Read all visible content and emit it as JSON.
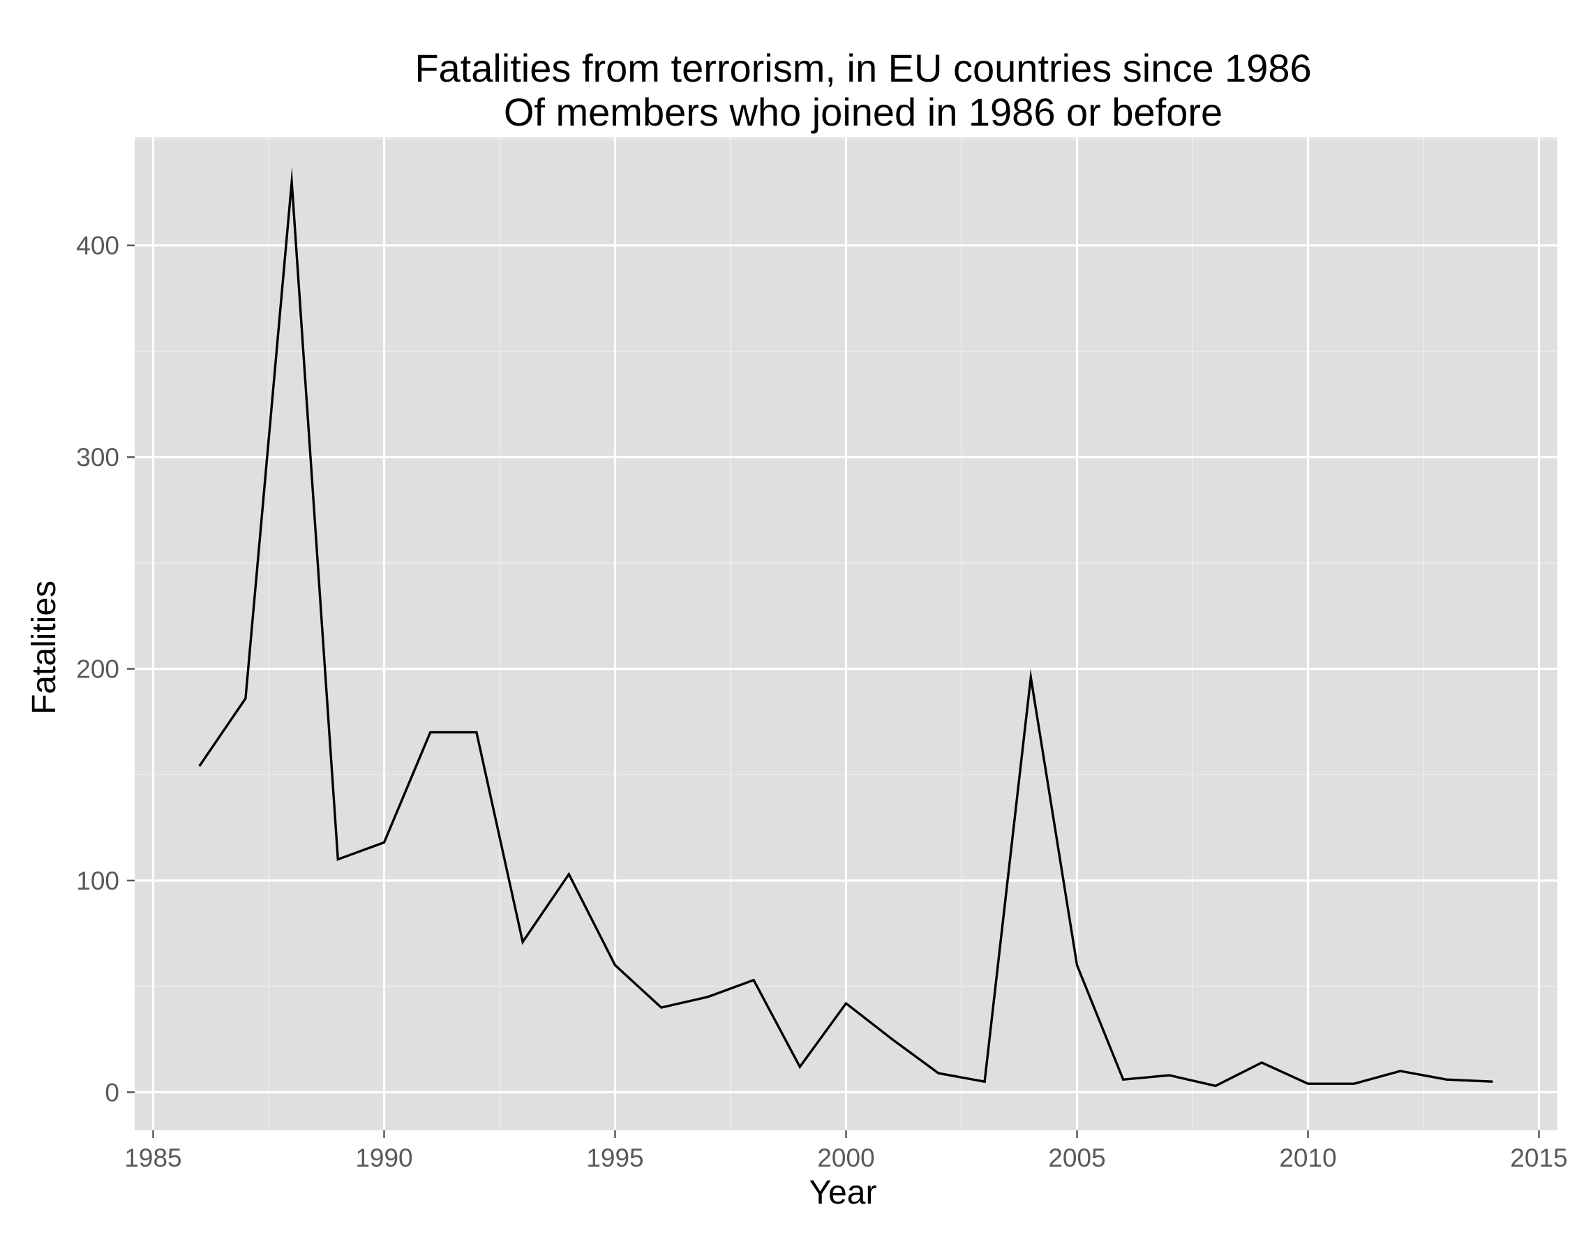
{
  "chart_data": {
    "type": "line",
    "title": "Fatalities from terrorism, in EU countries since 1986",
    "subtitle": "Of members who joined in 1986 or before",
    "xlabel": "Year",
    "ylabel": "Fatalities",
    "xlim": [
      1984.6,
      2015.4
    ],
    "ylim": [
      -18,
      451
    ],
    "x_ticks": [
      1985,
      1990,
      1995,
      2000,
      2005,
      2010,
      2015
    ],
    "y_ticks": [
      0,
      100,
      200,
      300,
      400
    ],
    "grid": true,
    "legend": "none",
    "colors": {
      "panel_background": "#dfdfdf",
      "grid_major": "#ffffff",
      "grid_minor": "#ececec",
      "line": "#000000"
    },
    "series": [
      {
        "x": [
          1986,
          1987,
          1988,
          1989,
          1990,
          1991,
          1992,
          1993,
          1994,
          1995,
          1996,
          1997,
          1998,
          1999,
          2000,
          2001,
          2002,
          2003,
          2004,
          2005,
          2006,
          2007,
          2008,
          2009,
          2010,
          2011,
          2012,
          2013,
          2014
        ],
        "values": [
          154,
          186,
          430,
          110,
          118,
          170,
          170,
          71,
          103,
          60,
          40,
          45,
          53,
          12,
          42,
          25,
          9,
          5,
          196,
          60,
          6,
          8,
          3,
          14,
          4,
          4,
          10,
          6,
          5
        ]
      }
    ]
  }
}
